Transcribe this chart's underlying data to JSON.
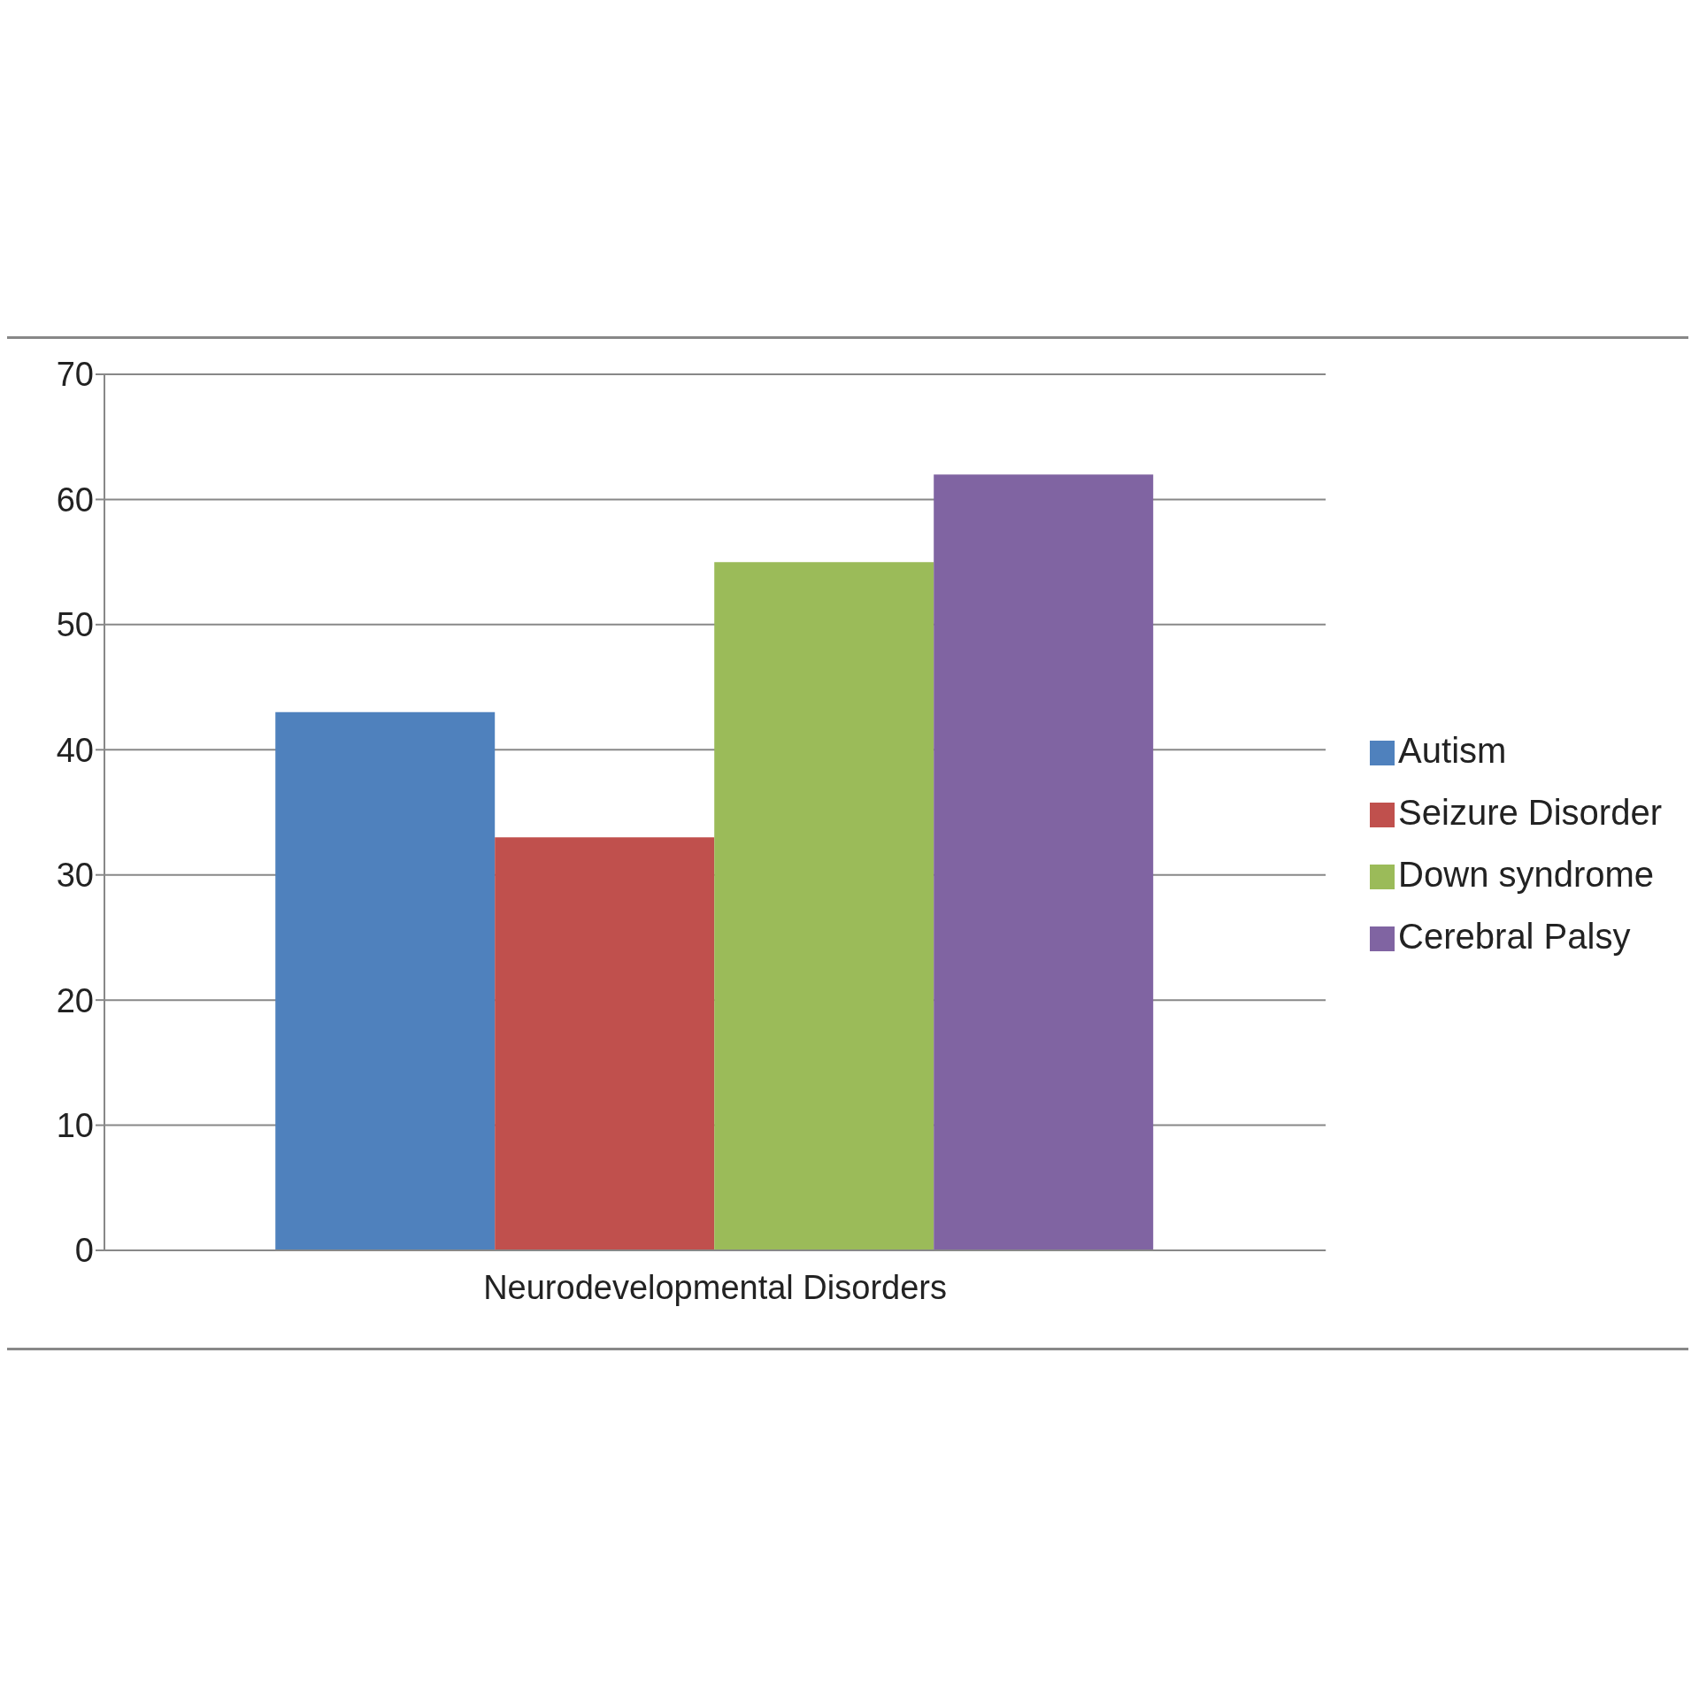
{
  "chart_data": {
    "type": "bar",
    "categories": [
      "Neurodevelopmental Disorders"
    ],
    "series": [
      {
        "name": "Autism",
        "color": "#4f81bd",
        "values": [
          43
        ]
      },
      {
        "name": "Seizure Disorder",
        "color": "#c0504d",
        "values": [
          33
        ]
      },
      {
        "name": "Down syndrome",
        "color": "#9bbb59",
        "values": [
          55
        ]
      },
      {
        "name": "Cerebral Palsy",
        "color": "#8064a2",
        "values": [
          62
        ]
      }
    ],
    "ylim": [
      0,
      70
    ],
    "yticks": [
      0,
      10,
      20,
      30,
      40,
      50,
      60,
      70
    ],
    "grid": "y",
    "legend": "right"
  }
}
